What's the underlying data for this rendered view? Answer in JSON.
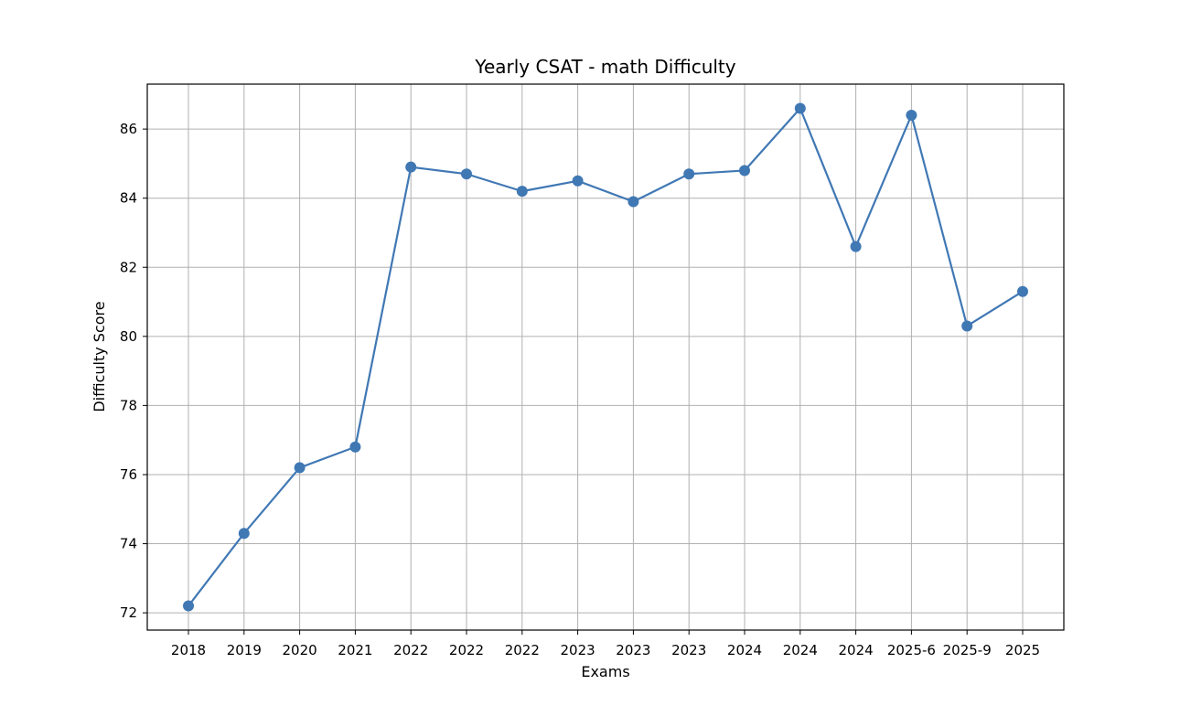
{
  "chart_data": {
    "type": "line",
    "title": "Yearly CSAT - math Difficulty",
    "xlabel": "Exams",
    "ylabel": "Difficulty Score",
    "categories": [
      "2018",
      "2019",
      "2020",
      "2021",
      "2022",
      "2022",
      "2022",
      "2023",
      "2023",
      "2023",
      "2024",
      "2024",
      "2024",
      "2025-6",
      "2025-9",
      "2025"
    ],
    "series": [
      {
        "values": [
          72.2,
          74.3,
          76.2,
          76.8,
          84.9,
          84.7,
          84.2,
          84.5,
          83.9,
          84.7,
          84.8,
          86.6,
          82.6,
          86.4,
          80.3,
          81.3
        ],
        "color": "#4078b4",
        "marker": "circle"
      }
    ],
    "ylim": [
      71.5,
      87.3
    ],
    "yticks": [
      "72",
      "74",
      "76",
      "78",
      "80",
      "82",
      "84",
      "86"
    ],
    "grid": true,
    "legend": "none"
  }
}
